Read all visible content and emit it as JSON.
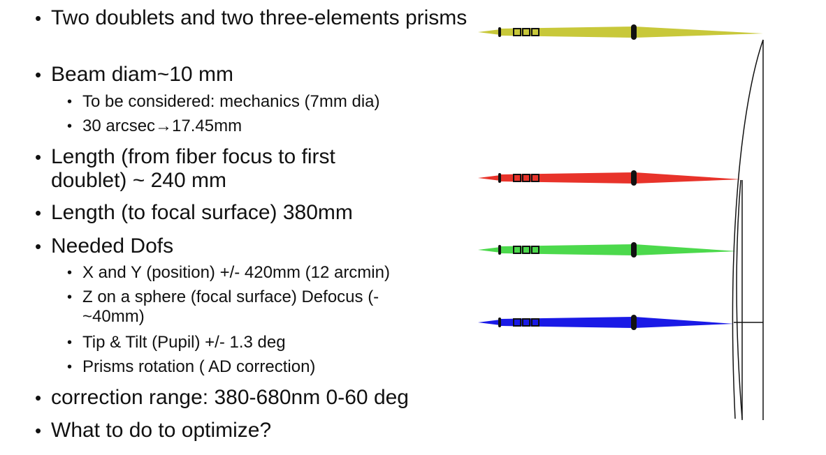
{
  "bullets": [
    {
      "level": 1,
      "text": "Two doublets and two three-elements prisms"
    },
    {
      "level": 1,
      "text": "Beam diam~10 mm"
    },
    {
      "level": 2,
      "text": "To be considered: mechanics (7mm dia)"
    },
    {
      "level": 2,
      "text": "30 arcsec→17.45mm"
    },
    {
      "level": 1,
      "text": "Length (from fiber focus to first doublet) ~ 240 mm"
    },
    {
      "level": 1,
      "text": "Length (to focal surface) 380mm"
    },
    {
      "level": 1,
      "text": "Needed Dofs"
    },
    {
      "level": 2,
      "text": "X and Y (position) +/- 420mm (12 arcmin)"
    },
    {
      "level": 2,
      "text": "Z on a sphere (focal surface) Defocus (-~40mm)"
    },
    {
      "level": 2,
      "text": "Tip & Tilt (Pupil) +/- 1.3 deg"
    },
    {
      "level": 2,
      "text": "Prisms rotation ( AD correction)"
    },
    {
      "level": 1,
      "text": " correction range: 380-680nm 0-60 deg"
    },
    {
      "level": 1,
      "text": "What to do to optimize?"
    }
  ],
  "bullet_glyph": "•",
  "beams": [
    {
      "color_name": "yellow",
      "color": "#c8c83a"
    },
    {
      "color_name": "red",
      "color": "#e8332a"
    },
    {
      "color_name": "green",
      "color": "#4cd94c"
    },
    {
      "color_name": "blue",
      "color": "#1a1ae6"
    }
  ],
  "line_color": "#111111"
}
